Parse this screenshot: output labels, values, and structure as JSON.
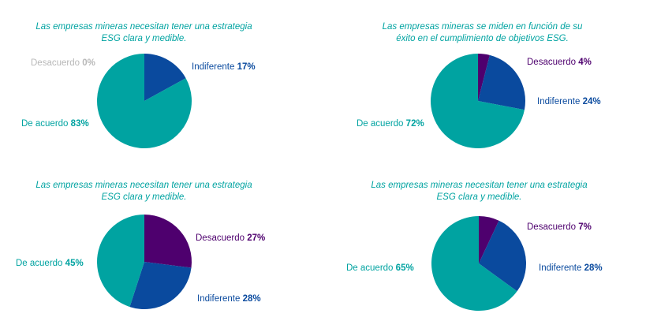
{
  "colors": {
    "title": "#00a3a1",
    "de_acuerdo": "#00a3a1",
    "indiferente": "#0a4a9e",
    "desacuerdo": "#4e006e",
    "desacuerdo_zero": "#b8b8b8"
  },
  "chart_data": [
    {
      "type": "pie",
      "title_lines": [
        "Las empresas mineras necesitan tener una estrategia",
        "ESG clara y medible."
      ],
      "slices": [
        {
          "label": "Desacuerdo",
          "value": 0,
          "display": "0%",
          "color": "#b8b8b8"
        },
        {
          "label": "Indiferente",
          "value": 17,
          "display": "17%",
          "color": "#0a4a9e"
        },
        {
          "label": "De acuerdo",
          "value": 83,
          "display": "83%",
          "color": "#00a3a1"
        }
      ]
    },
    {
      "type": "pie",
      "title_lines": [
        "Las empresas mineras se miden en función de su",
        "éxito en el cumplimiento de objetivos ESG."
      ],
      "slices": [
        {
          "label": "Desacuerdo",
          "value": 4,
          "display": "4%",
          "color": "#4e006e"
        },
        {
          "label": "Indiferente",
          "value": 24,
          "display": "24%",
          "color": "#0a4a9e"
        },
        {
          "label": "De acuerdo",
          "value": 72,
          "display": "72%",
          "color": "#00a3a1"
        }
      ]
    },
    {
      "type": "pie",
      "title_lines": [
        "Las empresas mineras necesitan tener una estrategia",
        "ESG clara y medible."
      ],
      "slices": [
        {
          "label": "Desacuerdo",
          "value": 27,
          "display": "27%",
          "color": "#4e006e"
        },
        {
          "label": "Indiferente",
          "value": 28,
          "display": "28%",
          "color": "#0a4a9e"
        },
        {
          "label": "De acuerdo",
          "value": 45,
          "display": "45%",
          "color": "#00a3a1"
        }
      ]
    },
    {
      "type": "pie",
      "title_lines": [
        "Las empresas mineras necesitan tener una estrategia",
        "ESG clara y medible."
      ],
      "slices": [
        {
          "label": "Desacuerdo",
          "value": 7,
          "display": "7%",
          "color": "#4e006e"
        },
        {
          "label": "Indiferente",
          "value": 28,
          "display": "28%",
          "color": "#0a4a9e"
        },
        {
          "label": "De acuerdo",
          "value": 65,
          "display": "65%",
          "color": "#00a3a1"
        }
      ]
    }
  ]
}
